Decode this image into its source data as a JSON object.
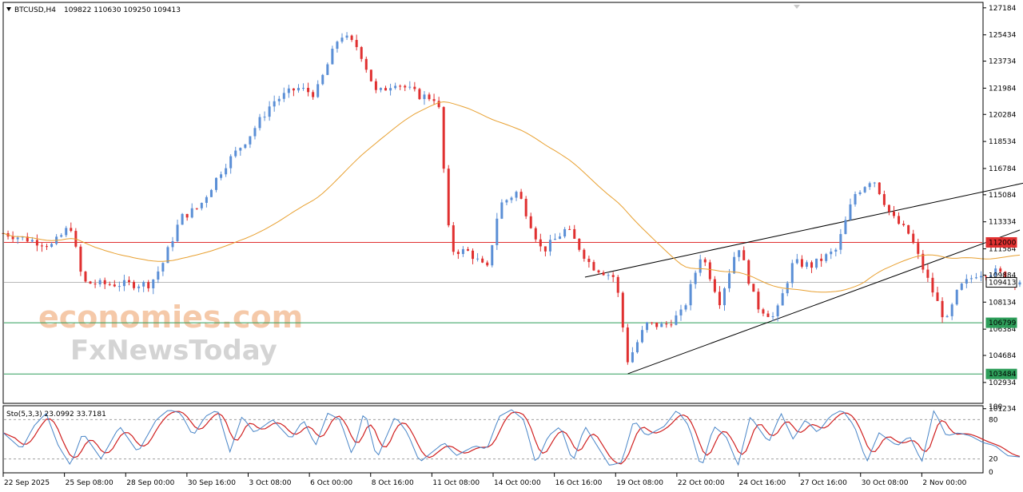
{
  "chart_data": {
    "type": "candlestick",
    "symbol_label": "BTCUSD,H4",
    "ohlc_label": "109822 110630 109250 109413",
    "price_axis": {
      "min": 101634,
      "max": 127484,
      "tick_labels": [
        "127184",
        "125434",
        "123734",
        "121984",
        "120284",
        "118534",
        "116784",
        "115084",
        "113334",
        "111584",
        "109884",
        "108134",
        "106384",
        "104684",
        "102934",
        "101234"
      ]
    },
    "time_axis_labels": [
      "22 Sep 2025",
      "25 Sep 08:00",
      "28 Sep 00:00",
      "30 Sep 16:00",
      "3 Oct 08:00",
      "6 Oct 00:00",
      "8 Oct 16:00",
      "11 Oct 08:00",
      "14 Oct 00:00",
      "16 Oct 16:00",
      "19 Oct 08:00",
      "22 Oct 00:00",
      "24 Oct 16:00",
      "27 Oct 16:00",
      "30 Oct 08:00",
      "2 Nov 00:00"
    ],
    "horizontal_levels": [
      {
        "value": 112000,
        "label": "112000",
        "color": "#e03030"
      },
      {
        "value": 109413,
        "label": "109413",
        "color": "#b8b8b8"
      },
      {
        "value": 106799,
        "label": "106799",
        "color": "#2e9e5a"
      },
      {
        "value": 103484,
        "label": "103484",
        "color": "#2e9e5a"
      }
    ],
    "channel_lines": [
      {
        "from": [
          9.5,
          109750
        ],
        "to": [
          19.5,
          118250
        ]
      },
      {
        "from": [
          10.2,
          103500
        ],
        "to": [
          16.6,
          112800
        ]
      }
    ],
    "moving_average_color": "#e8a030",
    "candle_colors": {
      "up": "#5b8fd6",
      "down": "#e03030"
    },
    "series_anchors": [
      [
        0,
        112600
      ],
      [
        0.8,
        111800
      ],
      [
        1.1,
        113100
      ],
      [
        1.3,
        109400
      ],
      [
        1.6,
        109300
      ],
      [
        2.4,
        109300
      ],
      [
        2.6,
        110600
      ],
      [
        2.9,
        113600
      ],
      [
        3.2,
        114300
      ],
      [
        3.6,
        116900
      ],
      [
        4.0,
        118800
      ],
      [
        4.4,
        121100
      ],
      [
        4.8,
        122000
      ],
      [
        5.1,
        121600
      ],
      [
        5.5,
        125500
      ],
      [
        5.8,
        124600
      ],
      [
        6.1,
        121600
      ],
      [
        6.4,
        122400
      ],
      [
        6.8,
        121500
      ],
      [
        7.1,
        121300
      ],
      [
        7.3,
        111500
      ],
      [
        7.6,
        111400
      ],
      [
        7.9,
        110200
      ],
      [
        8.1,
        114400
      ],
      [
        8.4,
        115300
      ],
      [
        8.8,
        111400
      ],
      [
        9.2,
        112900
      ],
      [
        9.6,
        110500
      ],
      [
        10.0,
        109700
      ],
      [
        10.2,
        104300
      ],
      [
        10.5,
        106700
      ],
      [
        10.8,
        106600
      ],
      [
        11.1,
        107500
      ],
      [
        11.4,
        111300
      ],
      [
        11.7,
        108200
      ],
      [
        12.0,
        111900
      ],
      [
        12.3,
        107900
      ],
      [
        12.6,
        107100
      ],
      [
        12.9,
        110700
      ],
      [
        13.2,
        110500
      ],
      [
        13.6,
        111500
      ],
      [
        13.9,
        115100
      ],
      [
        14.2,
        116200
      ],
      [
        14.5,
        113700
      ],
      [
        14.8,
        112500
      ],
      [
        15.0,
        110500
      ],
      [
        15.2,
        108600
      ],
      [
        15.4,
        106800
      ],
      [
        15.6,
        109000
      ],
      [
        15.9,
        110000
      ],
      [
        16.2,
        110100
      ],
      [
        16.6,
        109413
      ]
    ],
    "stochastic": {
      "label": "Sto(5,3,3) 23.0992 33.7181",
      "main_color": "#4a86c8",
      "signal_color": "#d02020",
      "levels": [
        80,
        20
      ],
      "axis_labels": [
        "100",
        "80",
        "20",
        "0"
      ],
      "anchors": [
        [
          0,
          60
        ],
        [
          0.3,
          35
        ],
        [
          0.5,
          70
        ],
        [
          0.7,
          90
        ],
        [
          0.9,
          40
        ],
        [
          1.1,
          10
        ],
        [
          1.3,
          60
        ],
        [
          1.6,
          20
        ],
        [
          1.9,
          70
        ],
        [
          2.2,
          30
        ],
        [
          2.5,
          80
        ],
        [
          2.7,
          95
        ],
        [
          2.9,
          90
        ],
        [
          3.1,
          55
        ],
        [
          3.3,
          85
        ],
        [
          3.5,
          95
        ],
        [
          3.7,
          30
        ],
        [
          3.9,
          85
        ],
        [
          4.1,
          60
        ],
        [
          4.4,
          80
        ],
        [
          4.7,
          50
        ],
        [
          4.9,
          80
        ],
        [
          5.1,
          40
        ],
        [
          5.3,
          90
        ],
        [
          5.5,
          80
        ],
        [
          5.7,
          25
        ],
        [
          5.9,
          95
        ],
        [
          6.1,
          20
        ],
        [
          6.4,
          85
        ],
        [
          6.6,
          60
        ],
        [
          6.8,
          15
        ],
        [
          7.0,
          30
        ],
        [
          7.2,
          45
        ],
        [
          7.4,
          25
        ],
        [
          7.7,
          40
        ],
        [
          7.9,
          35
        ],
        [
          8.1,
          85
        ],
        [
          8.3,
          95
        ],
        [
          8.5,
          80
        ],
        [
          8.7,
          12
        ],
        [
          8.9,
          55
        ],
        [
          9.1,
          70
        ],
        [
          9.3,
          15
        ],
        [
          9.5,
          70
        ],
        [
          9.7,
          40
        ],
        [
          9.9,
          10
        ],
        [
          10.1,
          15
        ],
        [
          10.3,
          80
        ],
        [
          10.5,
          55
        ],
        [
          10.8,
          70
        ],
        [
          11.0,
          95
        ],
        [
          11.2,
          70
        ],
        [
          11.4,
          5
        ],
        [
          11.6,
          70
        ],
        [
          11.8,
          55
        ],
        [
          12.0,
          10
        ],
        [
          12.2,
          85
        ],
        [
          12.5,
          45
        ],
        [
          12.7,
          90
        ],
        [
          12.9,
          50
        ],
        [
          13.1,
          80
        ],
        [
          13.3,
          60
        ],
        [
          13.5,
          85
        ],
        [
          13.7,
          95
        ],
        [
          13.9,
          70
        ],
        [
          14.1,
          15
        ],
        [
          14.3,
          60
        ],
        [
          14.6,
          40
        ],
        [
          14.8,
          55
        ],
        [
          15.0,
          15
        ],
        [
          15.2,
          95
        ],
        [
          15.4,
          55
        ],
        [
          15.6,
          60
        ],
        [
          15.8,
          55
        ],
        [
          16.0,
          45
        ],
        [
          16.2,
          40
        ],
        [
          16.4,
          25
        ],
        [
          16.6,
          23
        ]
      ]
    },
    "watermark": {
      "line1": "economies.com",
      "line2": "FxNewsToday"
    }
  }
}
